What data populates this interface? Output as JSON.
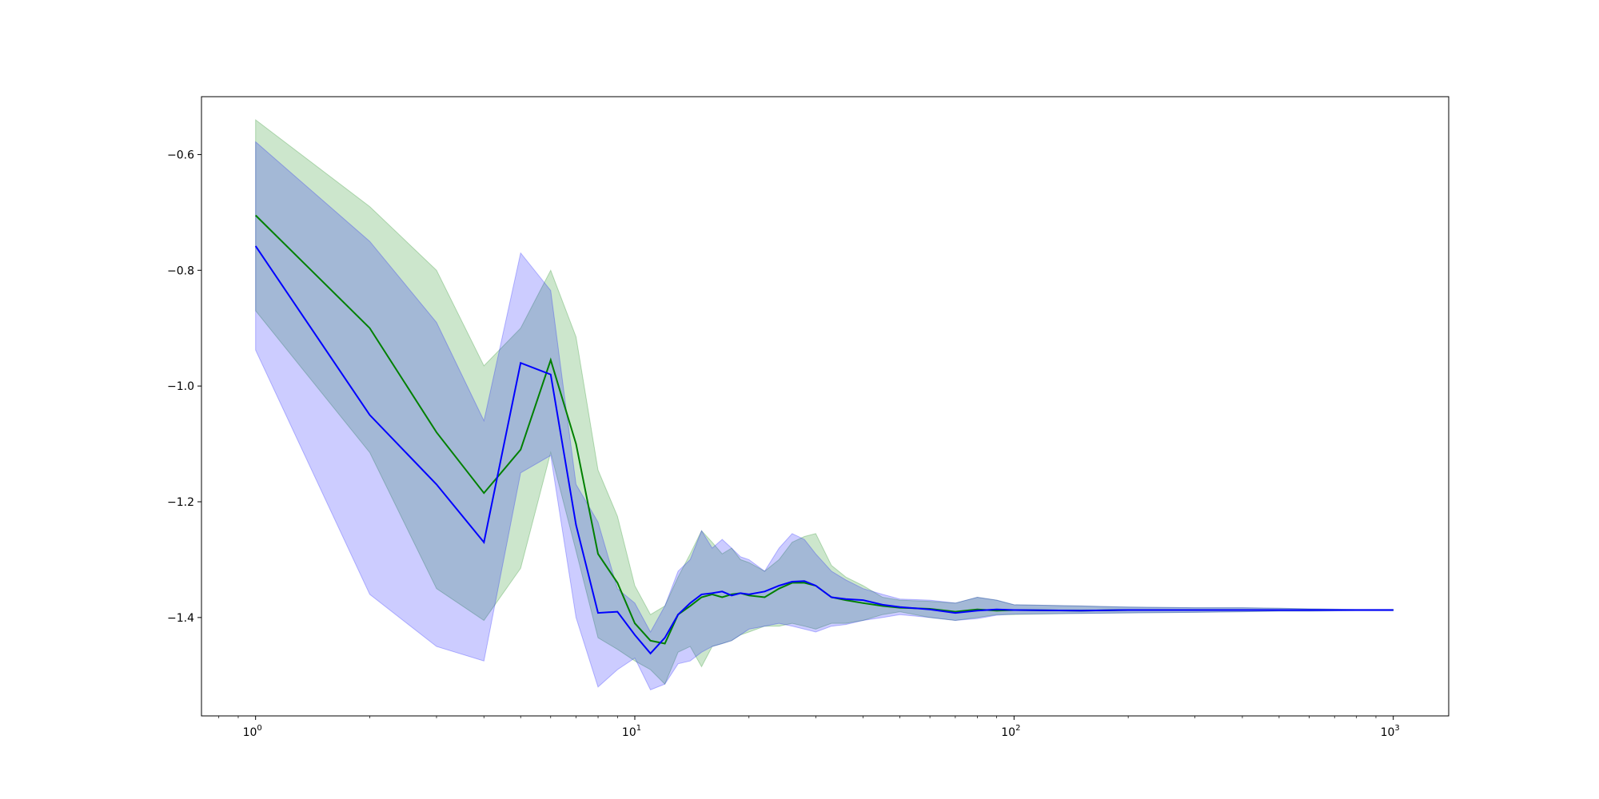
{
  "chart_data": {
    "type": "line",
    "xscale": "log",
    "xlim": [
      0.72,
      1400
    ],
    "ylim": [
      -1.57,
      -0.5
    ],
    "grid": false,
    "x_tick_labels": [
      {
        "base": "10",
        "exp": "0",
        "value": 1
      },
      {
        "base": "10",
        "exp": "1",
        "value": 10
      },
      {
        "base": "10",
        "exp": "2",
        "value": 100
      },
      {
        "base": "10",
        "exp": "3",
        "value": 1000
      }
    ],
    "y_tick_labels": [
      {
        "text": "−0.6",
        "value": -0.6
      },
      {
        "text": "−0.8",
        "value": -0.8
      },
      {
        "text": "−1.0",
        "value": -1.0
      },
      {
        "text": "−1.2",
        "value": -1.2
      },
      {
        "text": "−1.4",
        "value": -1.4
      }
    ],
    "series": [
      {
        "color": "#008000",
        "band_color": "#008000",
        "band_opacity": 0.2,
        "x": [
          1,
          2,
          3,
          4,
          5,
          6,
          7,
          8,
          9,
          10,
          11,
          12,
          13,
          14,
          15,
          16,
          17,
          18,
          19,
          20,
          22,
          24,
          26,
          28,
          30,
          33,
          36,
          40,
          45,
          50,
          60,
          70,
          80,
          90,
          100,
          150,
          200,
          300,
          400,
          500,
          600,
          800,
          1000
        ],
        "mean": [
          -0.705,
          -0.9,
          -1.08,
          -1.185,
          -1.11,
          -0.955,
          -1.1,
          -1.29,
          -1.34,
          -1.41,
          -1.44,
          -1.445,
          -1.395,
          -1.38,
          -1.365,
          -1.36,
          -1.365,
          -1.36,
          -1.358,
          -1.362,
          -1.365,
          -1.35,
          -1.34,
          -1.34,
          -1.345,
          -1.365,
          -1.37,
          -1.375,
          -1.38,
          -1.383,
          -1.385,
          -1.39,
          -1.386,
          -1.388,
          -1.387,
          -1.388,
          -1.387,
          -1.387,
          -1.387,
          -1.387,
          -1.387,
          -1.387,
          -1.387
        ],
        "upper": [
          -0.54,
          -0.69,
          -0.8,
          -0.965,
          -0.9,
          -0.8,
          -0.915,
          -1.145,
          -1.225,
          -1.345,
          -1.395,
          -1.38,
          -1.33,
          -1.29,
          -1.25,
          -1.27,
          -1.29,
          -1.28,
          -1.3,
          -1.305,
          -1.32,
          -1.3,
          -1.27,
          -1.26,
          -1.255,
          -1.31,
          -1.33,
          -1.345,
          -1.365,
          -1.37,
          -1.372,
          -1.375,
          -1.365,
          -1.37,
          -1.378,
          -1.38,
          -1.382,
          -1.383,
          -1.383,
          -1.384,
          -1.385,
          -1.386,
          -1.386
        ],
        "lower": [
          -0.87,
          -1.115,
          -1.35,
          -1.405,
          -1.315,
          -1.115,
          -1.285,
          -1.435,
          -1.455,
          -1.475,
          -1.49,
          -1.515,
          -1.46,
          -1.45,
          -1.485,
          -1.45,
          -1.445,
          -1.44,
          -1.43,
          -1.425,
          -1.415,
          -1.415,
          -1.41,
          -1.415,
          -1.42,
          -1.41,
          -1.41,
          -1.405,
          -1.395,
          -1.39,
          -1.4,
          -1.405,
          -1.4,
          -1.395,
          -1.395,
          -1.393,
          -1.392,
          -1.391,
          -1.39,
          -1.389,
          -1.389,
          -1.388,
          -1.388
        ]
      },
      {
        "color": "#0000ff",
        "band_color": "#0000ff",
        "band_opacity": 0.2,
        "x": [
          1,
          2,
          3,
          4,
          5,
          6,
          7,
          8,
          9,
          10,
          11,
          12,
          13,
          14,
          15,
          16,
          17,
          18,
          19,
          20,
          22,
          24,
          26,
          28,
          30,
          33,
          36,
          40,
          45,
          50,
          60,
          70,
          80,
          90,
          100,
          150,
          200,
          300,
          400,
          500,
          600,
          800,
          1000
        ],
        "mean": [
          -0.758,
          -1.05,
          -1.17,
          -1.27,
          -0.96,
          -0.98,
          -1.24,
          -1.392,
          -1.39,
          -1.43,
          -1.462,
          -1.435,
          -1.395,
          -1.375,
          -1.36,
          -1.358,
          -1.355,
          -1.362,
          -1.358,
          -1.36,
          -1.355,
          -1.345,
          -1.338,
          -1.337,
          -1.345,
          -1.365,
          -1.368,
          -1.37,
          -1.378,
          -1.382,
          -1.386,
          -1.392,
          -1.388,
          -1.386,
          -1.387,
          -1.388,
          -1.387,
          -1.387,
          -1.387,
          -1.387,
          -1.387,
          -1.387,
          -1.387
        ],
        "upper": [
          -0.578,
          -0.75,
          -0.89,
          -1.06,
          -0.77,
          -0.835,
          -1.17,
          -1.235,
          -1.35,
          -1.375,
          -1.425,
          -1.38,
          -1.32,
          -1.3,
          -1.25,
          -1.28,
          -1.265,
          -1.28,
          -1.295,
          -1.3,
          -1.32,
          -1.28,
          -1.255,
          -1.265,
          -1.29,
          -1.32,
          -1.335,
          -1.35,
          -1.36,
          -1.368,
          -1.37,
          -1.375,
          -1.365,
          -1.37,
          -1.378,
          -1.38,
          -1.382,
          -1.383,
          -1.383,
          -1.384,
          -1.385,
          -1.386,
          -1.386
        ],
        "lower": [
          -0.938,
          -1.36,
          -1.45,
          -1.475,
          -1.15,
          -1.12,
          -1.4,
          -1.52,
          -1.49,
          -1.47,
          -1.525,
          -1.515,
          -1.48,
          -1.475,
          -1.46,
          -1.45,
          -1.445,
          -1.44,
          -1.43,
          -1.42,
          -1.415,
          -1.41,
          -1.415,
          -1.42,
          -1.425,
          -1.415,
          -1.412,
          -1.405,
          -1.4,
          -1.395,
          -1.4,
          -1.405,
          -1.402,
          -1.396,
          -1.394,
          -1.393,
          -1.392,
          -1.391,
          -1.39,
          -1.389,
          -1.389,
          -1.388,
          -1.388
        ]
      }
    ]
  }
}
